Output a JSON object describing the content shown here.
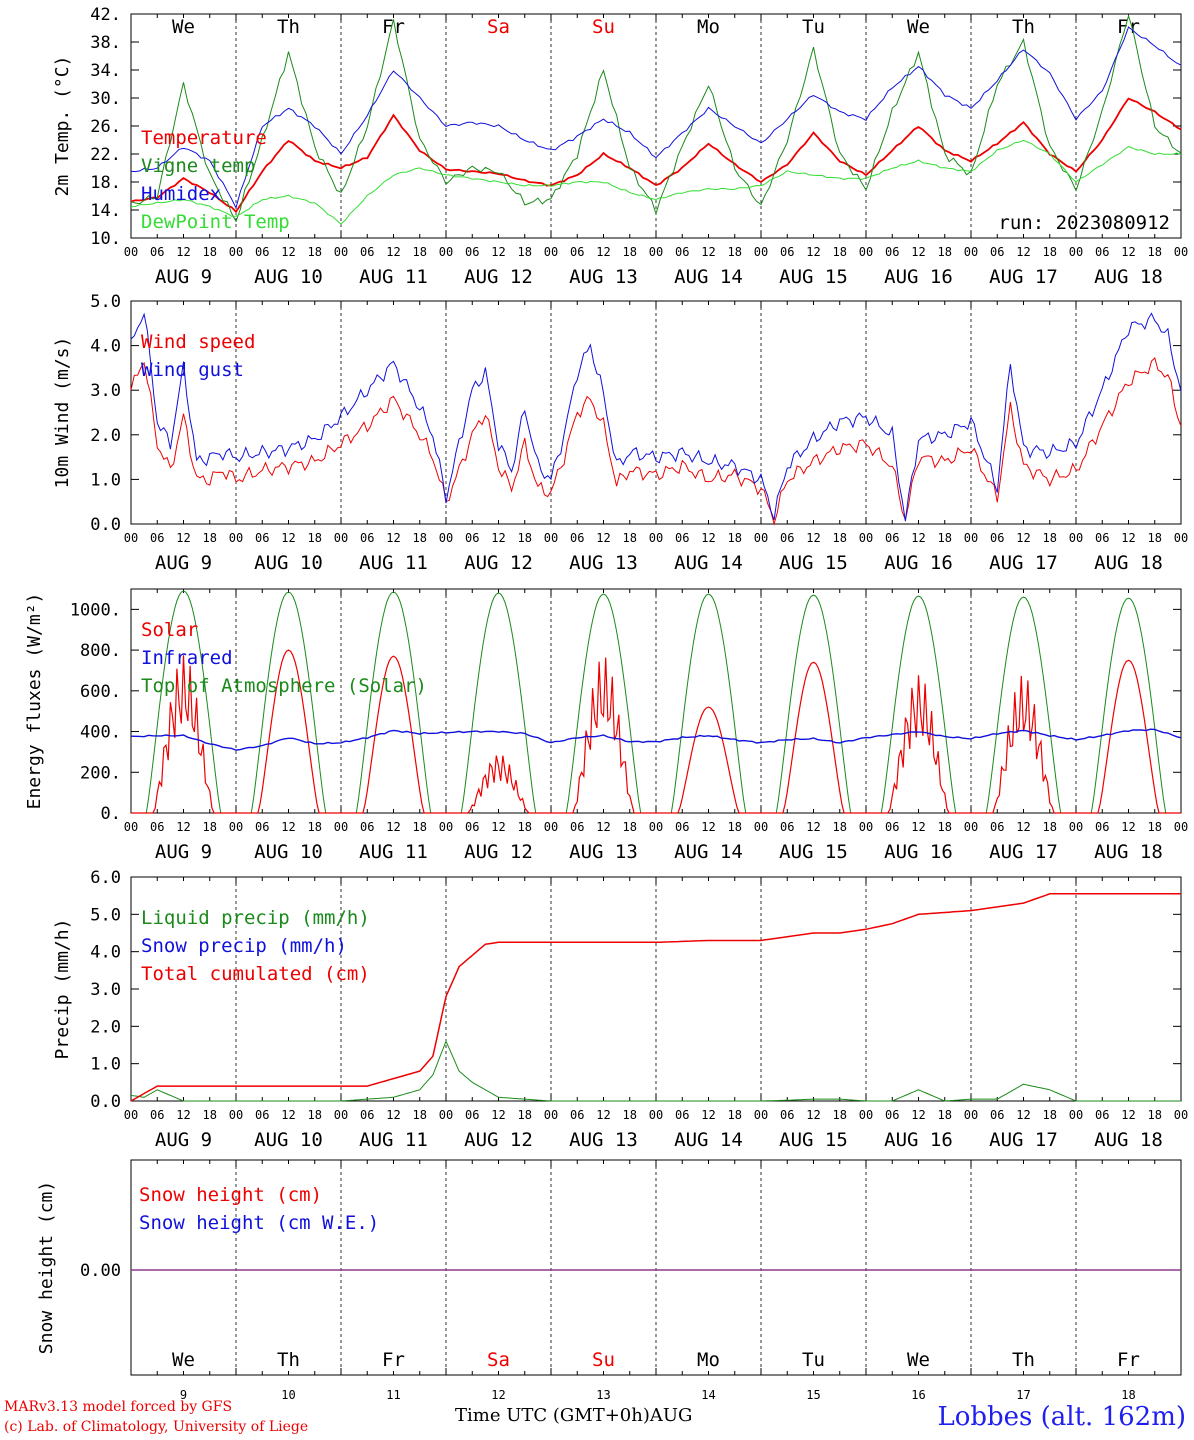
{
  "colors": {
    "red": "#ee0000",
    "blue": "#1010dd",
    "green": "#1a8a1a",
    "lightgreen": "#33dd33",
    "purple": "#8b3a8b",
    "black": "#000000"
  },
  "days": [
    "We",
    "Th",
    "Fr",
    "Sa",
    "Su",
    "Mo",
    "Tu",
    "We",
    "Th",
    "Fr"
  ],
  "weekend_days": [
    "Sa",
    "Su"
  ],
  "dates": [
    "AUG 9",
    "AUG 10",
    "AUG 11",
    "AUG 12",
    "AUG 13",
    "AUG 14",
    "AUG 15",
    "AUG 16",
    "AUG 17",
    "AUG 18"
  ],
  "hour_ticks": [
    "00",
    "06",
    "12",
    "18"
  ],
  "hour_tick_end": "00",
  "run_label": "run: 2023080912",
  "footer": {
    "model": "MARv3.13 model forced by GFS",
    "copyright": "(c) Lab. of Climatology, University of Liege",
    "xlabel": "Time UTC (GMT+0h)AUG",
    "station": "Lobbes (alt. 162m)"
  },
  "bottom_day_numbers": [
    "9",
    "10",
    "11",
    "12",
    "13",
    "14",
    "15",
    "16",
    "17",
    "18"
  ],
  "chart_data": [
    {
      "type": "line",
      "ylabel": "2m Temp. (°C)",
      "ylim": [
        10,
        42
      ],
      "yticks": [
        "10.",
        "14.",
        "18.",
        "22.",
        "26.",
        "30.",
        "34.",
        "38.",
        "42."
      ],
      "x_hours": [
        0,
        6,
        12,
        18,
        24,
        30,
        36,
        42,
        48,
        54,
        60,
        66,
        72,
        78,
        84,
        90,
        96,
        102,
        108,
        114,
        120,
        126,
        132,
        138,
        144,
        150,
        156,
        162,
        168,
        174,
        180,
        186,
        192,
        198,
        204,
        210,
        216,
        222,
        228,
        234,
        240
      ],
      "series": [
        {
          "name": "Temperature",
          "color": "red",
          "values": [
            15.2,
            15.8,
            18.5,
            16.5,
            13.8,
            19.5,
            24.0,
            21.0,
            20.0,
            21.5,
            27.5,
            22.5,
            19.8,
            19.5,
            19.2,
            18.2,
            17.5,
            19.0,
            22.0,
            20.0,
            17.5,
            20.0,
            23.5,
            20.5,
            18.0,
            20.5,
            25.0,
            21.0,
            19.0,
            22.5,
            26.0,
            22.5,
            21.0,
            23.5,
            26.5,
            22.0,
            19.5,
            24.0,
            30.0,
            28.0,
            25.5
          ]
        },
        {
          "name": "Vigne temp",
          "color": "green",
          "values": [
            14.8,
            16.0,
            32.0,
            19.0,
            12.5,
            24.0,
            36.5,
            23.0,
            16.0,
            26.0,
            41.0,
            24.0,
            18.0,
            20.0,
            19.5,
            15.0,
            15.5,
            22.0,
            34.0,
            20.0,
            14.0,
            23.0,
            32.0,
            20.0,
            14.5,
            24.0,
            37.0,
            22.0,
            17.0,
            28.0,
            36.5,
            22.0,
            19.0,
            32.0,
            38.0,
            23.0,
            17.0,
            28.0,
            42.0,
            26.0,
            22.0
          ]
        },
        {
          "name": "Humidex",
          "color": "blue",
          "values": [
            19.5,
            20.0,
            23.0,
            21.0,
            14.5,
            26.0,
            28.5,
            26.0,
            22.0,
            27.5,
            34.0,
            30.0,
            26.0,
            26.5,
            26.0,
            24.0,
            22.5,
            24.5,
            27.0,
            25.0,
            21.5,
            25.0,
            28.5,
            26.0,
            23.5,
            27.0,
            30.5,
            28.0,
            27.0,
            31.5,
            34.5,
            30.5,
            28.5,
            32.5,
            37.0,
            33.5,
            27.0,
            31.0,
            40.0,
            37.5,
            34.5
          ]
        },
        {
          "name": "DewPoint Temp",
          "color": "lightgreen",
          "values": [
            14.5,
            15.0,
            15.5,
            14.5,
            13.0,
            15.5,
            16.0,
            15.0,
            12.0,
            16.0,
            19.0,
            20.0,
            19.0,
            18.5,
            18.0,
            17.5,
            17.5,
            18.0,
            18.0,
            16.5,
            15.5,
            16.5,
            17.0,
            17.0,
            17.5,
            19.5,
            19.0,
            18.5,
            18.5,
            20.0,
            21.0,
            20.0,
            19.5,
            22.5,
            24.0,
            22.0,
            18.0,
            20.5,
            23.0,
            22.0,
            22.0
          ]
        }
      ]
    },
    {
      "type": "line",
      "ylabel": "10m Wind (m/s)",
      "ylim": [
        0,
        5
      ],
      "yticks": [
        "0.0",
        "1.0",
        "2.0",
        "3.0",
        "4.0",
        "5.0"
      ],
      "x_hours": [
        0,
        3,
        6,
        9,
        12,
        15,
        18,
        21,
        24,
        30,
        36,
        42,
        48,
        54,
        60,
        66,
        69,
        72,
        75,
        78,
        81,
        84,
        87,
        90,
        93,
        96,
        99,
        102,
        105,
        108,
        111,
        114,
        120,
        126,
        132,
        138,
        144,
        147,
        150,
        156,
        162,
        168,
        174,
        177,
        180,
        186,
        192,
        198,
        201,
        204,
        210,
        216,
        222,
        228,
        234,
        237,
        240
      ],
      "series": [
        {
          "name": "Wind speed",
          "color": "red",
          "values": [
            3.0,
            3.7,
            1.8,
            1.2,
            2.4,
            1.0,
            1.0,
            1.2,
            1.0,
            1.2,
            1.3,
            1.4,
            1.8,
            2.2,
            2.8,
            2.0,
            1.5,
            0.5,
            1.2,
            2.0,
            2.5,
            1.3,
            0.8,
            1.8,
            0.8,
            0.7,
            1.5,
            2.5,
            2.8,
            2.2,
            0.9,
            1.2,
            1.1,
            1.3,
            1.0,
            1.1,
            0.8,
            0.1,
            1.0,
            1.4,
            1.7,
            1.8,
            1.3,
            0.1,
            1.5,
            1.4,
            1.7,
            0.6,
            2.6,
            1.3,
            1.0,
            1.2,
            2.2,
            3.2,
            3.6,
            3.3,
            2.2
          ]
        },
        {
          "name": "Wind gust",
          "color": "blue",
          "values": [
            4.0,
            4.8,
            2.3,
            1.8,
            3.5,
            1.4,
            1.5,
            1.6,
            1.5,
            1.6,
            1.7,
            1.9,
            2.4,
            3.0,
            3.6,
            2.6,
            2.0,
            0.6,
            1.8,
            3.0,
            3.4,
            1.8,
            1.2,
            2.6,
            1.3,
            1.0,
            2.0,
            3.4,
            4.0,
            2.9,
            1.3,
            1.6,
            1.5,
            1.6,
            1.4,
            1.3,
            1.0,
            0.2,
            1.3,
            1.9,
            2.3,
            2.4,
            2.0,
            0.1,
            1.9,
            2.0,
            2.3,
            0.8,
            3.6,
            1.7,
            1.6,
            1.8,
            3.0,
            4.4,
            4.6,
            4.2,
            3.0
          ]
        }
      ]
    },
    {
      "type": "line",
      "ylabel": "Energy fluxes (W/m²)",
      "ylim": [
        0,
        1100
      ],
      "yticks": [
        "0.",
        "200.",
        "400.",
        "600.",
        "800.",
        "1000."
      ],
      "infrared_hours": [
        0,
        6,
        12,
        18,
        24,
        30,
        36,
        42,
        48,
        54,
        60,
        66,
        72,
        78,
        84,
        90,
        96,
        102,
        108,
        114,
        120,
        126,
        132,
        138,
        144,
        150,
        156,
        162,
        168,
        174,
        180,
        186,
        192,
        198,
        204,
        210,
        216,
        222,
        228,
        234,
        240
      ],
      "toa_peaks": [
        1090,
        1085,
        1085,
        1080,
        1075,
        1075,
        1070,
        1065,
        1060,
        1055
      ],
      "solar_peaks": [
        780,
        800,
        770,
        300,
        770,
        520,
        740,
        690,
        680,
        750
      ],
      "series": [
        {
          "name": "Solar",
          "color": "red"
        },
        {
          "name": "Infrared",
          "color": "blue",
          "values": [
            375,
            380,
            380,
            340,
            310,
            330,
            370,
            340,
            345,
            370,
            405,
            390,
            395,
            400,
            400,
            390,
            345,
            370,
            380,
            350,
            350,
            370,
            380,
            360,
            345,
            360,
            365,
            345,
            370,
            385,
            400,
            375,
            365,
            390,
            405,
            380,
            360,
            380,
            405,
            410,
            370
          ]
        },
        {
          "name": "Top of Atmosphere (Solar)",
          "color": "green"
        }
      ]
    },
    {
      "type": "line",
      "ylabel": "Precip (mm/h)",
      "ylim": [
        0,
        6
      ],
      "yticks": [
        "0.0",
        "1.0",
        "2.0",
        "3.0",
        "4.0",
        "5.0",
        "6.0"
      ],
      "x_hours": [
        0,
        3,
        6,
        12,
        24,
        36,
        48,
        54,
        60,
        66,
        69,
        72,
        75,
        78,
        81,
        84,
        90,
        96,
        108,
        120,
        132,
        144,
        150,
        156,
        162,
        168,
        174,
        180,
        186,
        192,
        198,
        204,
        210,
        216,
        222,
        228,
        234,
        240
      ],
      "series": [
        {
          "name": "Liquid precip (mm/h)",
          "color": "green",
          "values": [
            0.15,
            0.1,
            0.3,
            0.0,
            0.0,
            0.0,
            0.0,
            0.05,
            0.1,
            0.3,
            0.7,
            1.6,
            0.8,
            0.5,
            0.3,
            0.1,
            0.05,
            0.0,
            0.0,
            0.0,
            0.0,
            0.0,
            0.02,
            0.05,
            0.05,
            0.0,
            0.0,
            0.3,
            0.0,
            0.05,
            0.05,
            0.45,
            0.3,
            0.0,
            0.0,
            0.0,
            0.0,
            0.0
          ]
        },
        {
          "name": "Snow precip (mm/h)",
          "color": "blue",
          "values": []
        },
        {
          "name": "Total cumulated (cm)",
          "color": "red",
          "values": [
            0.0,
            0.2,
            0.4,
            0.4,
            0.4,
            0.4,
            0.4,
            0.4,
            0.6,
            0.8,
            1.2,
            2.8,
            3.6,
            3.9,
            4.2,
            4.25,
            4.25,
            4.25,
            4.25,
            4.25,
            4.3,
            4.3,
            4.4,
            4.5,
            4.5,
            4.6,
            4.75,
            5.0,
            5.05,
            5.1,
            5.2,
            5.3,
            5.55,
            5.55,
            5.55,
            5.55,
            5.55,
            5.55
          ]
        }
      ]
    },
    {
      "type": "line",
      "ylabel": "Snow height (cm)",
      "yticks": [
        "0.00"
      ],
      "series": [
        {
          "name": "Snow height (cm)",
          "color": "red",
          "values": [
            0,
            0
          ]
        },
        {
          "name": "Snow height (cm W.E.)",
          "color": "blue",
          "values": [
            0,
            0
          ]
        }
      ]
    }
  ]
}
